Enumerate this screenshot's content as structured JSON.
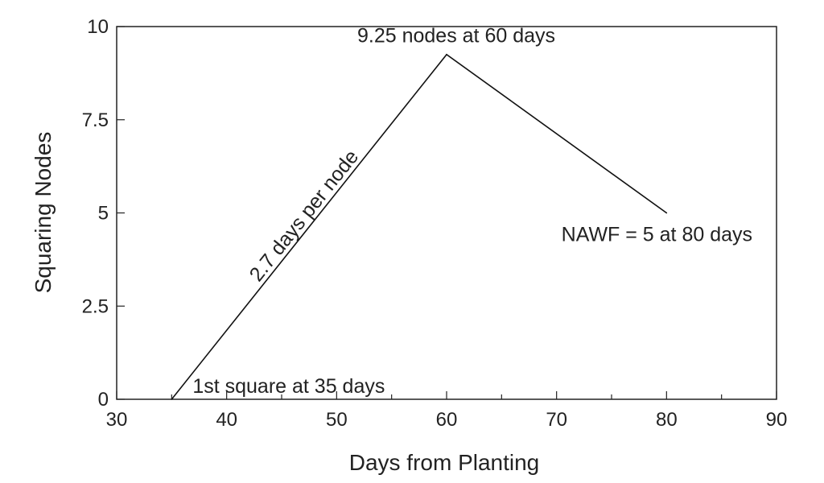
{
  "chart_data": {
    "type": "line",
    "title": "",
    "xlabel": "Days from Planting",
    "ylabel": "Squaring Nodes",
    "xlim": [
      30,
      90
    ],
    "ylim": [
      0,
      10
    ],
    "x_ticks": [
      30,
      40,
      50,
      60,
      70,
      80,
      90
    ],
    "y_ticks": [
      0,
      2.5,
      5,
      7.5,
      10
    ],
    "y_tick_labels": [
      "0",
      "2.5",
      "5",
      "7.5",
      "10"
    ],
    "grid": false,
    "legend": "none",
    "series": [
      {
        "x": [
          35,
          60,
          80
        ],
        "y": [
          0,
          9.25,
          5
        ]
      }
    ],
    "annotations": [
      {
        "text": "9.25 nodes at 60 days",
        "x": 60,
        "y": 9.25
      },
      {
        "text": "NAWF = 5 at 80 days",
        "x": 80,
        "y": 5
      },
      {
        "text": "1st square at 35 days",
        "x": 35,
        "y": 0
      },
      {
        "text": "2.7 days per node",
        "x": 47.5,
        "y": 4.6
      }
    ]
  }
}
